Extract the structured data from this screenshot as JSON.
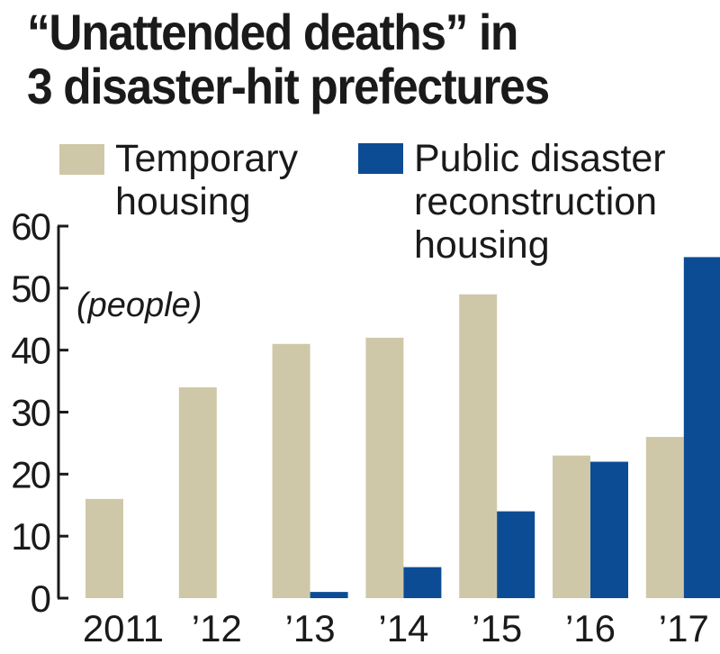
{
  "chart_data": {
    "type": "bar",
    "title_lines": [
      "“Unattended deaths” in",
      "3 disaster-hit prefectures"
    ],
    "unit_label": "(people)",
    "categories": [
      "2011",
      "’12",
      "’13",
      "’14",
      "’15",
      "’16",
      "’17"
    ],
    "series": [
      {
        "name": "Temporary housing",
        "legend_lines": [
          "Temporary",
          "housing"
        ],
        "color": "#CFC8A8",
        "values": [
          16,
          34,
          41,
          42,
          49,
          23,
          26
        ]
      },
      {
        "name": "Public disaster reconstruction housing",
        "legend_lines": [
          "Public disaster",
          "reconstruction",
          "housing"
        ],
        "color": "#0C4C94",
        "values": [
          null,
          null,
          1,
          5,
          14,
          22,
          55
        ]
      }
    ],
    "ylim": [
      0,
      60
    ],
    "yticks": [
      0,
      10,
      20,
      30,
      40,
      50,
      60
    ],
    "grid": false,
    "legend_position": "top"
  }
}
